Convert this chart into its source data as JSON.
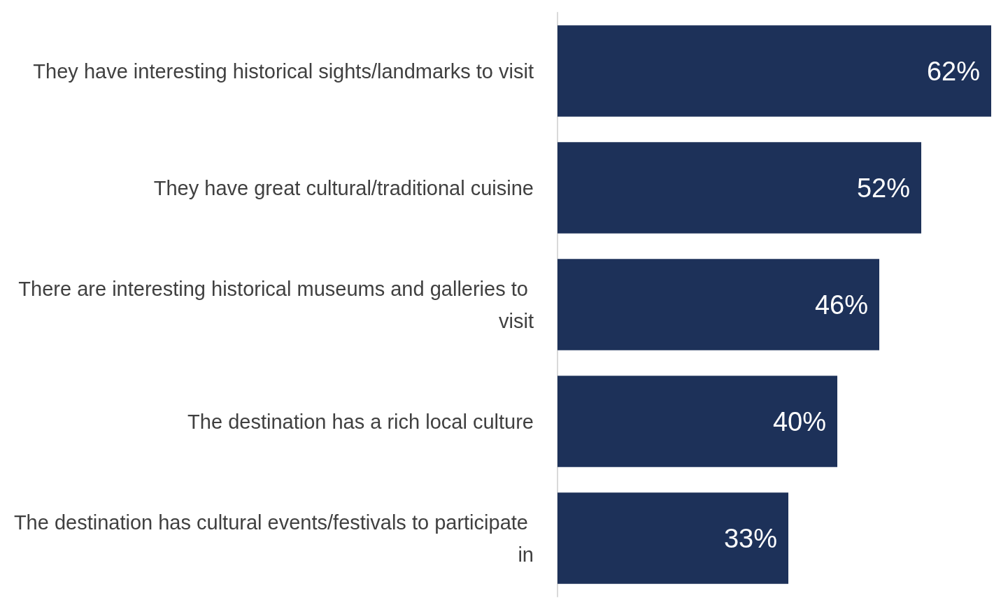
{
  "chart_data": {
    "type": "bar",
    "orientation": "horizontal",
    "categories": [
      "They have interesting historical sights/landmarks to visit",
      "They have great cultural/traditional cuisine",
      "There are interesting historical museums and galleries to visit",
      "The destination has a rich local culture",
      "The destination has cultural events/festivals to participate in"
    ],
    "values": [
      62,
      52,
      46,
      40,
      33
    ],
    "value_labels": [
      "62%",
      "52%",
      "46%",
      "40%",
      "33%"
    ],
    "color": "#1d3159"
  }
}
